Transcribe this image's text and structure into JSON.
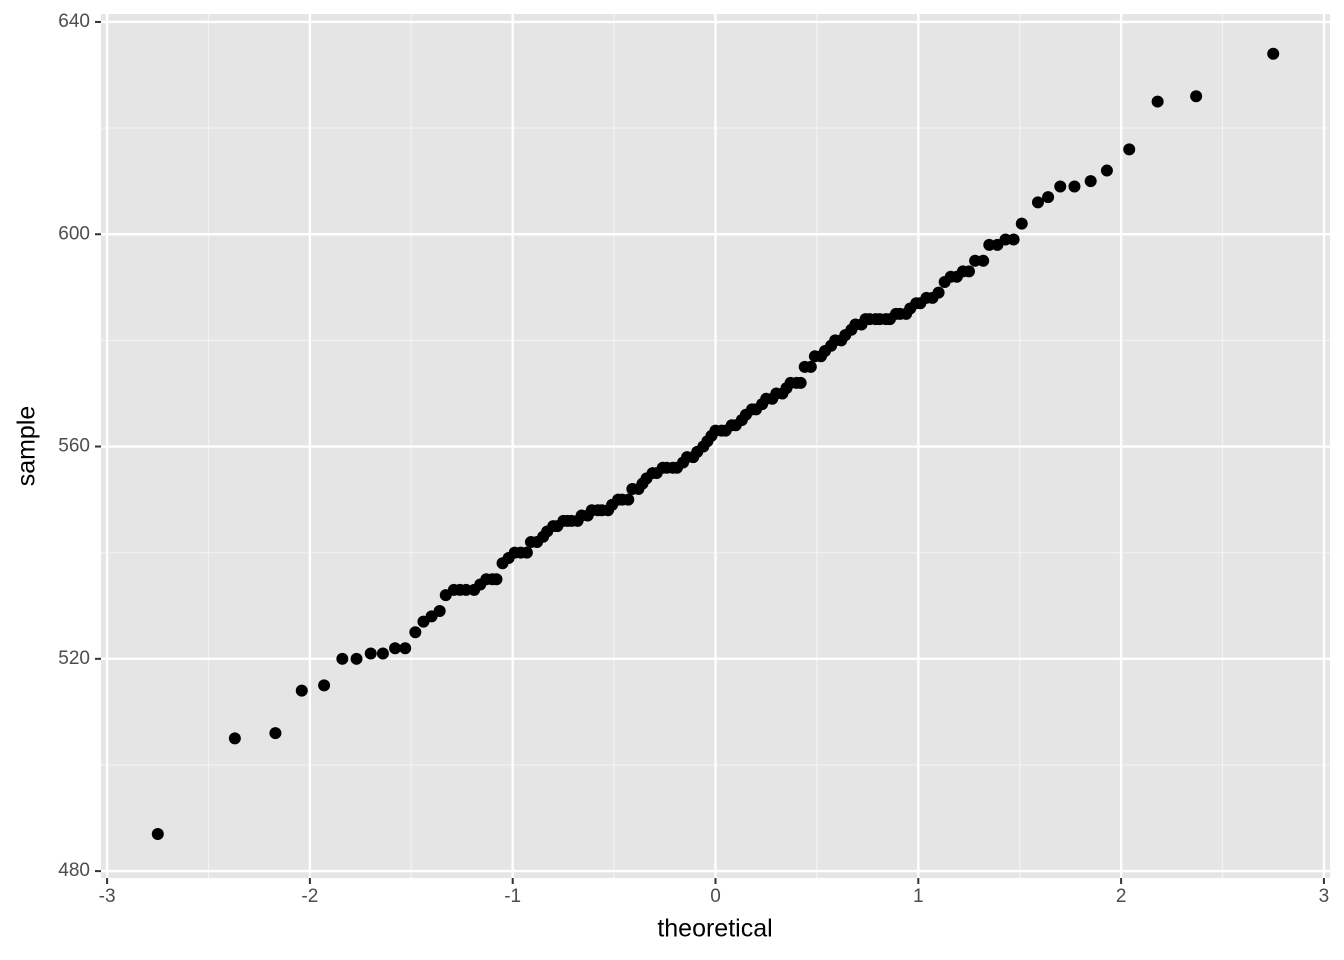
{
  "chart_data": {
    "type": "scatter",
    "x_label": "theoretical",
    "y_label": "sample",
    "color": "#000000",
    "xlim": [
      -3.03,
      3.03
    ],
    "ylim": [
      478.7,
      641.5
    ],
    "xticks": [
      -3,
      -2,
      -1,
      0,
      1,
      2,
      3
    ],
    "yticks": [
      480,
      520,
      560,
      600,
      640
    ],
    "grid": true,
    "x": [
      -2.75,
      -2.37,
      -2.17,
      -2.04,
      -1.93,
      -1.84,
      -1.77,
      -1.7,
      -1.64,
      -1.58,
      -1.53,
      -1.48,
      -1.44,
      -1.4,
      -1.36,
      -1.33,
      -1.29,
      -1.26,
      -1.23,
      -1.19,
      -1.16,
      -1.13,
      -1.1,
      -1.08,
      -1.05,
      -1.02,
      -0.99,
      -0.96,
      -0.93,
      -0.91,
      -0.88,
      -0.85,
      -0.83,
      -0.8,
      -0.78,
      -0.75,
      -0.73,
      -0.71,
      -0.68,
      -0.66,
      -0.63,
      -0.61,
      -0.58,
      -0.56,
      -0.53,
      -0.51,
      -0.48,
      -0.46,
      -0.43,
      -0.41,
      -0.38,
      -0.36,
      -0.34,
      -0.31,
      -0.29,
      -0.26,
      -0.24,
      -0.21,
      -0.19,
      -0.16,
      -0.14,
      -0.11,
      -0.09,
      -0.06,
      -0.04,
      -0.02,
      0.0,
      0.03,
      0.05,
      0.08,
      0.1,
      0.13,
      0.15,
      0.18,
      0.2,
      0.23,
      0.25,
      0.28,
      0.3,
      0.33,
      0.35,
      0.37,
      0.4,
      0.42,
      0.44,
      0.47,
      0.49,
      0.52,
      0.54,
      0.57,
      0.59,
      0.62,
      0.64,
      0.67,
      0.69,
      0.72,
      0.74,
      0.76,
      0.79,
      0.81,
      0.84,
      0.86,
      0.89,
      0.91,
      0.94,
      0.96,
      0.99,
      1.01,
      1.04,
      1.07,
      1.1,
      1.13,
      1.16,
      1.19,
      1.22,
      1.25,
      1.28,
      1.32,
      1.35,
      1.39,
      1.43,
      1.47,
      1.51,
      1.59,
      1.64,
      1.7,
      1.77,
      1.85,
      1.93,
      2.04,
      2.18,
      2.37,
      2.75
    ],
    "values": [
      487,
      505,
      506,
      514,
      515,
      520,
      520,
      521,
      521,
      522,
      522,
      525,
      527,
      528,
      529,
      532,
      533,
      533,
      533,
      533,
      534,
      535,
      535,
      535,
      538,
      539,
      540,
      540,
      540,
      542,
      542,
      543,
      544,
      545,
      545,
      546,
      546,
      546,
      546,
      547,
      547,
      548,
      548,
      548,
      548,
      549,
      550,
      550,
      550,
      552,
      552,
      553,
      554,
      555,
      555,
      556,
      556,
      556,
      556,
      557,
      558,
      558,
      559,
      560,
      561,
      562,
      563,
      563,
      563,
      564,
      564,
      565,
      566,
      567,
      567,
      568,
      569,
      569,
      570,
      570,
      571,
      572,
      572,
      572,
      575,
      575,
      577,
      577,
      578,
      579,
      580,
      580,
      581,
      582,
      583,
      583,
      584,
      584,
      584,
      584,
      584,
      584,
      585,
      585,
      585,
      586,
      587,
      587,
      588,
      588,
      589,
      591,
      592,
      592,
      593,
      593,
      595,
      595,
      598,
      598,
      599,
      599,
      602,
      606,
      607,
      609,
      609,
      610,
      612,
      616,
      625,
      626,
      634
    ]
  }
}
